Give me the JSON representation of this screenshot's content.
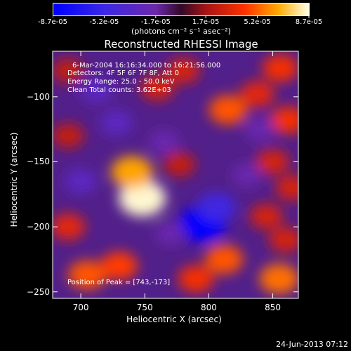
{
  "colorbar": {
    "tick_labels": [
      "-8.7e-05",
      "-5.2e-05",
      "-1.7e-05",
      "1.7e-05",
      "5.2e-05",
      "8.7e-05"
    ],
    "tick_values": [
      -8.7e-05,
      -5.2e-05,
      -1.7e-05,
      1.7e-05,
      5.2e-05,
      8.7e-05
    ],
    "range": [
      -8.7e-05,
      8.7e-05
    ],
    "units_label": "(photons cm⁻² s⁻¹ asec⁻²)"
  },
  "annotations": {
    "time_range": "6-Mar-2004 16:16:34.000 to 16:21:56.000",
    "detectors": "Detectors: 4F 5F 6F 7F 8F, Att 0",
    "energy": "Energy Range: 25.0 - 50.0 keV",
    "clean": "Clean     Total counts: 3.62E+03",
    "peak": "Position of Peak = [743,-173]"
  },
  "footer": {
    "date": "24-Jun-2013 07:12"
  },
  "colors": {
    "background": "#000000",
    "text": "#ffffff",
    "colormap": "RHESSI blue-white"
  },
  "chart_data": {
    "type": "heatmap",
    "title": "Reconstructed RHESSI Image",
    "xlabel": "Heliocentric X (arcsec)",
    "ylabel": "Heliocentric Y (arcsec)",
    "xlim": [
      678,
      870
    ],
    "ylim": [
      -255,
      -65
    ],
    "x_ticks": [
      700,
      750,
      800,
      850
    ],
    "y_ticks": [
      -100,
      -150,
      -200,
      -250
    ],
    "x_tick_labels": [
      "700",
      "750",
      "800",
      "850"
    ],
    "y_tick_labels": [
      "−100",
      "−150",
      "−200",
      "−250"
    ],
    "peak": [
      743,
      -173
    ],
    "z_range": [
      -8.7e-05,
      8.7e-05
    ],
    "features": [
      {
        "x": 748,
        "y": -178,
        "value": 8.5e-05
      },
      {
        "x": 740,
        "y": -158,
        "value": 6.5e-05
      },
      {
        "x": 690,
        "y": -200,
        "value": 3.5e-05
      },
      {
        "x": 705,
        "y": -237,
        "value": 5e-05
      },
      {
        "x": 730,
        "y": -230,
        "value": 4.5e-05
      },
      {
        "x": 790,
        "y": -240,
        "value": 4e-05
      },
      {
        "x": 812,
        "y": -225,
        "value": 5e-05
      },
      {
        "x": 855,
        "y": -240,
        "value": 5.5e-05
      },
      {
        "x": 860,
        "y": -210,
        "value": 3e-05
      },
      {
        "x": 845,
        "y": -192,
        "value": 3e-05
      },
      {
        "x": 815,
        "y": -110,
        "value": 5e-05
      },
      {
        "x": 838,
        "y": -98,
        "value": 3.5e-05
      },
      {
        "x": 856,
        "y": -78,
        "value": 4e-05
      },
      {
        "x": 862,
        "y": -118,
        "value": 4e-05
      },
      {
        "x": 780,
        "y": -80,
        "value": 3e-05
      },
      {
        "x": 760,
        "y": -93,
        "value": 3e-05
      },
      {
        "x": 850,
        "y": -150,
        "value": 3e-05
      },
      {
        "x": 690,
        "y": -130,
        "value": 2.5e-05
      },
      {
        "x": 690,
        "y": -80,
        "value": 2.5e-05
      },
      {
        "x": 865,
        "y": -170,
        "value": 3e-05
      },
      {
        "x": 777,
        "y": -152,
        "value": 2.5e-05
      },
      {
        "x": 712,
        "y": -95,
        "value": -3e-05
      },
      {
        "x": 728,
        "y": -120,
        "value": -3e-05
      },
      {
        "x": 795,
        "y": -198,
        "value": -8.7e-05
      },
      {
        "x": 806,
        "y": -185,
        "value": -5e-05
      },
      {
        "x": 700,
        "y": -165,
        "value": -3e-05
      },
      {
        "x": 765,
        "y": -135,
        "value": -2e-05
      },
      {
        "x": 830,
        "y": -160,
        "value": -2e-05
      },
      {
        "x": 770,
        "y": -205,
        "value": -2e-05
      },
      {
        "x": 840,
        "y": -125,
        "value": -2e-05
      }
    ]
  }
}
